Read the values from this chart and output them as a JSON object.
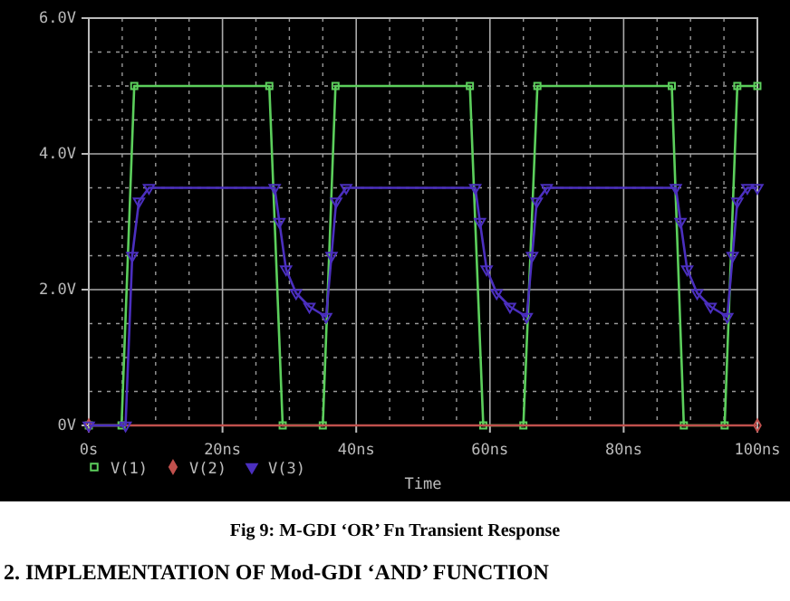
{
  "chart_data": {
    "type": "line",
    "title": "Fig 9: M-GDI ‘OR’ Fn Transient Response",
    "xlabel": "Time",
    "annotations": [
      "2. IMPLEMENTATION OF Mod-GDI ‘AND’ FUNCTION"
    ],
    "series": [
      {
        "name": "V(1)",
        "color": "#5ccf5c",
        "marker": "square",
        "x": [
          0,
          4.9,
          6.8,
          27,
          29,
          35,
          36.9,
          57,
          59,
          65,
          67.1,
          87.2,
          89,
          95.1,
          97,
          100
        ],
        "values": [
          0,
          0,
          5,
          5,
          0,
          0,
          5,
          5,
          0,
          0,
          5,
          5,
          0,
          0,
          5,
          5
        ]
      },
      {
        "name": "V(2)",
        "color": "#c0504d",
        "marker": "diamond",
        "x": [
          0,
          100
        ],
        "values": [
          0,
          0
        ]
      },
      {
        "name": "V(3)",
        "color": "#4b2fbf",
        "marker": "triangle",
        "x": [
          0,
          5.5,
          6.5,
          7.5,
          9,
          27.8,
          28.5,
          29.5,
          31,
          33,
          35.5,
          36.3,
          37,
          38.5,
          57.8,
          58.5,
          59.5,
          61,
          63,
          65.5,
          66.3,
          67,
          68.5,
          87.8,
          88.5,
          89.5,
          91,
          93,
          95.5,
          96.3,
          97,
          98.5,
          100
        ],
        "values": [
          0,
          0,
          2.5,
          3.3,
          3.5,
          3.5,
          3.0,
          2.3,
          1.95,
          1.75,
          1.6,
          2.5,
          3.3,
          3.5,
          3.5,
          3.0,
          2.3,
          1.95,
          1.75,
          1.6,
          2.5,
          3.3,
          3.5,
          3.5,
          3.0,
          2.3,
          1.95,
          1.75,
          1.6,
          2.5,
          3.3,
          3.5,
          3.5
        ]
      }
    ],
    "xlim": [
      0,
      100
    ],
    "xticks": [
      {
        "value": 0,
        "label": "0s"
      },
      {
        "value": 20,
        "label": "20ns"
      },
      {
        "value": 40,
        "label": "40ns"
      },
      {
        "value": 60,
        "label": "60ns"
      },
      {
        "value": 80,
        "label": "80ns"
      },
      {
        "value": 100,
        "label": "100ns"
      }
    ],
    "ylim": [
      0,
      6
    ],
    "yticks": [
      {
        "value": 0,
        "label": "0V"
      },
      {
        "value": 2,
        "label": "2.0V"
      },
      {
        "value": 4,
        "label": "4.0V"
      },
      {
        "value": 6,
        "label": "6.0V"
      }
    ],
    "grid": true,
    "legend": "bottom",
    "line_style": "solid"
  }
}
